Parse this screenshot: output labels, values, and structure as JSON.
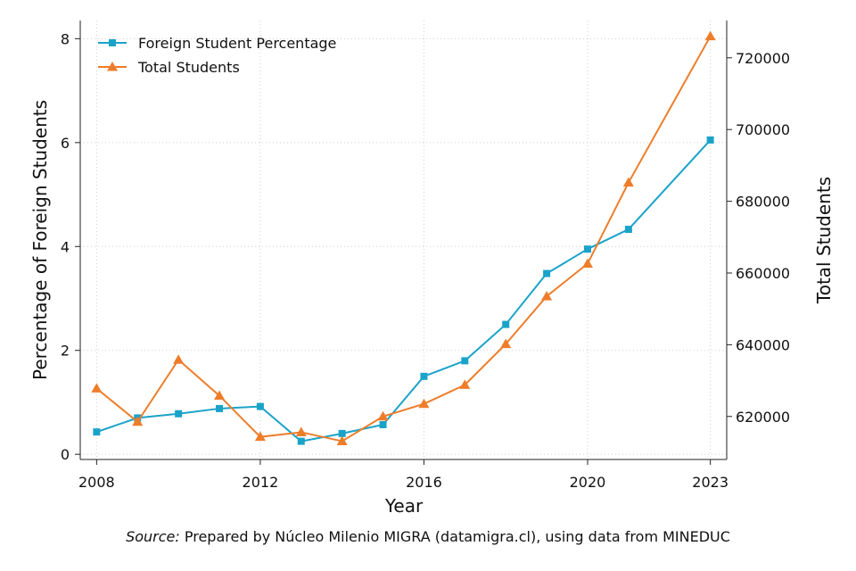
{
  "chart_data": {
    "type": "line",
    "xlabel": "Year",
    "ylabel_left": "Percentage of Foreign Students",
    "ylabel_right": "Total Students",
    "x_ticks": [
      2008,
      2012,
      2016,
      2020,
      2023
    ],
    "y_left_ticks": [
      0,
      2,
      4,
      6,
      8
    ],
    "y_right_ticks": [
      620000,
      640000,
      660000,
      680000,
      700000,
      720000
    ],
    "y_left_lim": [
      -0.1,
      8.35
    ],
    "y_right_lim": [
      608000,
      730400
    ],
    "x_lim": [
      2007.6,
      2023.4
    ],
    "grid": true,
    "legend_position": "top-left",
    "series": [
      {
        "name": "Foreign Student Percentage",
        "axis": "left",
        "color": "#1aa3c9",
        "marker": "square",
        "x": [
          2008,
          2009,
          2010,
          2011,
          2012,
          2013,
          2014,
          2015,
          2016,
          2017,
          2018,
          2019,
          2020,
          2021,
          2023
        ],
        "values": [
          0.43,
          0.7,
          0.78,
          0.88,
          0.92,
          0.25,
          0.4,
          0.57,
          1.5,
          1.8,
          2.5,
          3.48,
          3.95,
          4.33,
          6.05
        ]
      },
      {
        "name": "Total Students",
        "axis": "right",
        "color": "#ee7d2a",
        "marker": "triangle",
        "x": [
          2008,
          2009,
          2010,
          2011,
          2012,
          2013,
          2014,
          2015,
          2016,
          2017,
          2018,
          2019,
          2020,
          2021,
          2023
        ],
        "values": [
          627800,
          618500,
          635800,
          625800,
          614300,
          615600,
          613100,
          620000,
          623500,
          628800,
          640200,
          653500,
          662600,
          685200,
          726000
        ]
      }
    ]
  },
  "source": {
    "prefix": "Source:",
    "text": " Prepared by Núcleo Milenio MIGRA (datamigra.cl), using data from MINEDUC"
  }
}
